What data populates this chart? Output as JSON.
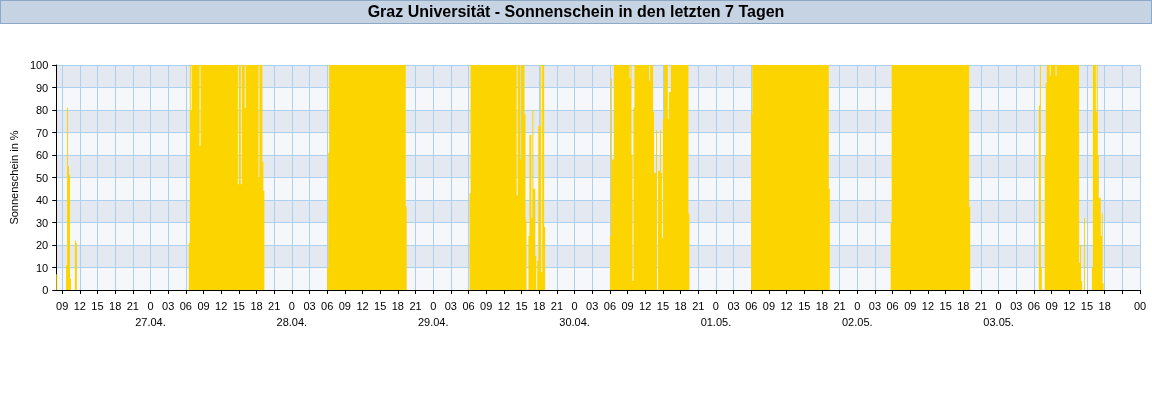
{
  "chart_data": {
    "type": "area",
    "title": "Graz Universität - Sonnenschein in den letzten 7 Tagen",
    "ylabel": "Sonnenschein in %",
    "xlim": [
      "--04-26T08:00",
      "--05-04T00:00"
    ],
    "ylim": [
      0,
      100
    ],
    "yticks": [
      0,
      10,
      20,
      30,
      40,
      50,
      60,
      70,
      80,
      90,
      100
    ],
    "xticks": [
      {
        "value": "--04-26T09:00",
        "label": "09"
      },
      {
        "value": "--04-26T12:00",
        "label": "12"
      },
      {
        "value": "--04-26T15:00",
        "label": "15"
      },
      {
        "value": "--04-26T18:00",
        "label": "18"
      },
      {
        "value": "--04-26T21:00",
        "label": "21"
      },
      {
        "value": "--04-27T00:00",
        "label": "0\n27.04."
      },
      {
        "value": "--04-27T03:00",
        "label": "03"
      },
      {
        "value": "--04-27T06:00",
        "label": "06"
      },
      {
        "value": "--04-27T09:00",
        "label": "09"
      },
      {
        "value": "--04-27T12:00",
        "label": "12"
      },
      {
        "value": "--04-27T15:00",
        "label": "15"
      },
      {
        "value": "--04-27T18:00",
        "label": "18"
      },
      {
        "value": "--04-27T21:00",
        "label": "21"
      },
      {
        "value": "--04-28T00:00",
        "label": "0\n28.04."
      },
      {
        "value": "--04-28T03:00",
        "label": "03"
      },
      {
        "value": "--04-28T06:00",
        "label": "06"
      },
      {
        "value": "--04-28T09:00",
        "label": "09"
      },
      {
        "value": "--04-28T12:00",
        "label": "12"
      },
      {
        "value": "--04-28T15:00",
        "label": "15"
      },
      {
        "value": "--04-28T18:00",
        "label": "18"
      },
      {
        "value": "--04-28T21:00",
        "label": "21"
      },
      {
        "value": "--04-29T00:00",
        "label": "0\n29.04."
      },
      {
        "value": "--04-29T03:00",
        "label": "03"
      },
      {
        "value": "--04-29T06:00",
        "label": "06"
      },
      {
        "value": "--04-29T09:00",
        "label": "09"
      },
      {
        "value": "--04-29T12:00",
        "label": "12"
      },
      {
        "value": "--04-29T15:00",
        "label": "15"
      },
      {
        "value": "--04-29T18:00",
        "label": "18"
      },
      {
        "value": "--04-29T21:00",
        "label": "21"
      },
      {
        "value": "--04-30T00:00",
        "label": "0\n30.04."
      },
      {
        "value": "--04-30T03:00",
        "label": "03"
      },
      {
        "value": "--04-30T06:00",
        "label": "06"
      },
      {
        "value": "--04-30T09:00",
        "label": "09"
      },
      {
        "value": "--04-30T12:00",
        "label": "12"
      },
      {
        "value": "--04-30T15:00",
        "label": "15"
      },
      {
        "value": "--04-30T18:00",
        "label": "18"
      },
      {
        "value": "--04-30T21:00",
        "label": "21"
      },
      {
        "value": "--05-01T00:00",
        "label": "0\n01.05."
      },
      {
        "value": "--05-01T03:00",
        "label": "03"
      },
      {
        "value": "--05-01T06:00",
        "label": "06"
      },
      {
        "value": "--05-01T09:00",
        "label": "09"
      },
      {
        "value": "--05-01T12:00",
        "label": "12"
      },
      {
        "value": "--05-01T15:00",
        "label": "15"
      },
      {
        "value": "--05-01T18:00",
        "label": "18"
      },
      {
        "value": "--05-01T21:00",
        "label": "21"
      },
      {
        "value": "--05-02T00:00",
        "label": "0\n02.05."
      },
      {
        "value": "--05-02T03:00",
        "label": "03"
      },
      {
        "value": "--05-02T06:00",
        "label": "06"
      },
      {
        "value": "--05-02T09:00",
        "label": "09"
      },
      {
        "value": "--05-02T12:00",
        "label": "12"
      },
      {
        "value": "--05-02T15:00",
        "label": "15"
      },
      {
        "value": "--05-02T18:00",
        "label": "18"
      },
      {
        "value": "--05-02T21:00",
        "label": "21"
      },
      {
        "value": "--05-03T00:00",
        "label": "0\n03.05."
      },
      {
        "value": "--05-03T03:00",
        "label": "03"
      },
      {
        "value": "--05-03T06:00",
        "label": "06"
      },
      {
        "value": "--05-03T09:00",
        "label": "09"
      },
      {
        "value": "--05-03T12:00",
        "label": "12"
      },
      {
        "value": "--05-03T15:00",
        "label": "15"
      },
      {
        "value": "--05-03T18:00",
        "label": "18"
      },
      {
        "value": "--05-03T21:00",
        "label": null
      },
      {
        "value": "--05-04T00:00",
        "label": "00"
      }
    ],
    "grid": true,
    "color": "#fcd400",
    "x": [
      "--04-26T08:00",
      "--04-26T08:10",
      "--04-26T08:10",
      "--04-26T09:40",
      "--04-26T09:40",
      "--04-26T09:50",
      "--04-26T09:50",
      "--04-26T10:00",
      "--04-26T10:00",
      "--04-26T10:10",
      "--04-26T10:10",
      "--04-26T10:20",
      "--04-26T10:20",
      "--04-26T10:30",
      "--04-26T10:30",
      "--04-26T11:10",
      "--04-26T11:10",
      "--04-26T11:20",
      "--04-26T11:20",
      "--04-26T11:30",
      "--04-26T11:30",
      "--04-27T06:30",
      "--04-27T06:30",
      "--04-27T06:40",
      "--04-27T06:40",
      "--04-27T06:50",
      "--04-27T06:50",
      "--04-27T07:00",
      "--04-27T07:00",
      "--04-27T08:20",
      "--04-27T08:20",
      "--04-27T08:30",
      "--04-27T08:30",
      "--04-27T14:50",
      "--04-27T14:50",
      "--04-27T15:00",
      "--04-27T15:00",
      "--04-27T15:20",
      "--04-27T15:20",
      "--04-27T15:30",
      "--04-27T15:30",
      "--04-27T16:00",
      "--04-27T16:00",
      "--04-27T16:10",
      "--04-27T16:10",
      "--04-27T18:20",
      "--04-27T18:20",
      "--04-27T18:30",
      "--04-27T18:30",
      "--04-27T19:00",
      "--04-27T19:00",
      "--04-27T19:10",
      "--04-27T19:10",
      "--04-27T19:20",
      "--04-27T19:20",
      "--04-28T06:00",
      "--04-28T06:00",
      "--04-28T06:10",
      "--04-28T06:10",
      "--04-28T06:20",
      "--04-28T06:20",
      "--04-28T19:20",
      "--04-28T19:20",
      "--04-28T19:30",
      "--04-28T19:30",
      "--04-29T06:10",
      "--04-29T06:10",
      "--04-29T06:20",
      "--04-29T06:20",
      "--04-29T14:10",
      "--04-29T14:10",
      "--04-29T14:20",
      "--04-29T14:20",
      "--04-29T14:50",
      "--04-29T14:50",
      "--04-29T15:00",
      "--04-29T15:00",
      "--04-29T15:30",
      "--04-29T15:30",
      "--04-29T15:40",
      "--04-29T15:40",
      "--04-29T15:50",
      "--04-29T15:50",
      "--04-29T16:10",
      "--04-29T16:10",
      "--04-29T16:20",
      "--04-29T16:20",
      "--04-29T16:40",
      "--04-29T16:40",
      "--04-29T16:50",
      "--04-29T16:50",
      "--04-29T17:00",
      "--04-29T17:00",
      "--04-29T17:20",
      "--04-29T17:20",
      "--04-29T17:30",
      "--04-29T17:30",
      "--04-29T17:40",
      "--04-29T17:40",
      "--04-29T17:50",
      "--04-29T17:50",
      "--04-29T18:10",
      "--04-29T18:10",
      "--04-29T18:20",
      "--04-29T18:20",
      "--04-29T18:30",
      "--04-29T18:30",
      "--04-29T18:50",
      "--04-29T18:50",
      "--04-29T19:00",
      "--04-29T19:00",
      "--04-30T06:00",
      "--04-30T06:00",
      "--04-30T06:10",
      "--04-30T06:10",
      "--04-30T06:20",
      "--04-30T06:20",
      "--04-30T06:40",
      "--04-30T06:40",
      "--04-30T09:20",
      "--04-30T09:20",
      "--04-30T09:30",
      "--04-30T09:30",
      "--04-30T09:40",
      "--04-30T09:40",
      "--04-30T09:50",
      "--04-30T09:50",
      "--04-30T10:00",
      "--04-30T10:00",
      "--04-30T10:10",
      "--04-30T10:10",
      "--04-30T12:40",
      "--04-30T12:40",
      "--04-30T12:50",
      "--04-30T12:50",
      "--04-30T13:20",
      "--04-30T13:20",
      "--04-30T13:30",
      "--04-30T13:30",
      "--04-30T13:50",
      "--04-30T13:50",
      "--04-30T14:00",
      "--04-30T14:00",
      "--04-30T14:10",
      "--04-30T14:10",
      "--04-30T14:30",
      "--04-30T14:30",
      "--04-30T14:40",
      "--04-30T14:40",
      "--04-30T14:50",
      "--04-30T14:50",
      "--04-30T15:00",
      "--04-30T15:00",
      "--04-30T15:10",
      "--04-30T15:10",
      "--04-30T15:50",
      "--04-30T15:50",
      "--04-30T16:00",
      "--04-30T16:00",
      "--04-30T16:20",
      "--04-30T16:20",
      "--04-30T19:20",
      "--04-30T19:20",
      "--04-30T19:30",
      "--04-30T19:30",
      "--05-01T06:00",
      "--05-01T06:00",
      "--05-01T06:10",
      "--05-01T06:10",
      "--05-01T19:10",
      "--05-01T19:10",
      "--05-01T19:20",
      "--05-01T19:20",
      "--05-02T05:40",
      "--05-02T05:40",
      "--05-02T05:50",
      "--05-02T05:50",
      "--05-02T19:00",
      "--05-02T19:00",
      "--05-02T19:10",
      "--05-02T19:10",
      "--05-03T06:50",
      "--05-03T06:50",
      "--05-03T07:00",
      "--05-03T07:00",
      "--05-03T07:10",
      "--05-03T07:10",
      "--05-03T07:20",
      "--05-03T07:20",
      "--05-03T07:50",
      "--05-03T07:50",
      "--05-03T08:00",
      "--05-03T08:00",
      "--05-03T08:10",
      "--05-03T08:10",
      "--05-03T08:40",
      "--05-03T08:40",
      "--05-03T08:50",
      "--05-03T08:50",
      "--05-03T09:40",
      "--05-03T09:40",
      "--05-03T09:50",
      "--05-03T09:50",
      "--05-03T13:40",
      "--05-03T13:40",
      "--05-03T13:50",
      "--05-03T13:50",
      "--05-03T14:00",
      "--05-03T14:00",
      "--05-03T14:10",
      "--05-03T14:10",
      "--05-03T14:30",
      "--05-03T14:30",
      "--05-03T14:40",
      "--05-03T14:40",
      "--05-03T15:50",
      "--05-03T15:50",
      "--05-03T16:00",
      "--05-03T16:00",
      "--05-03T16:30",
      "--05-03T16:30",
      "--05-03T16:40",
      "--05-03T16:40",
      "--05-03T16:50",
      "--05-03T16:50",
      "--05-03T17:00",
      "--05-03T17:00",
      "--05-03T17:20",
      "--05-03T17:20",
      "--05-03T17:30",
      "--05-03T17:30",
      "--05-03T17:40",
      "--05-03T17:40",
      "--05-03T17:50",
      "--05-03T17:50"
    ],
    "values": [
      7,
      7,
      0,
      0,
      11,
      11,
      81,
      81,
      55,
      55,
      51,
      51,
      5,
      5,
      0,
      0,
      22,
      22,
      21,
      21,
      0,
      0,
      21,
      21,
      100,
      100,
      80,
      80,
      100,
      100,
      64,
      64,
      100,
      100,
      47,
      47,
      100,
      100,
      47,
      47,
      100,
      100,
      81,
      81,
      100,
      100,
      50,
      50,
      100,
      100,
      57,
      57,
      44,
      44,
      0,
      0,
      10,
      10,
      61,
      61,
      100,
      100,
      37,
      37,
      0,
      0,
      43,
      43,
      100,
      100,
      42,
      42,
      100,
      100,
      58,
      58,
      100,
      100,
      78,
      78,
      31,
      31,
      0,
      0,
      24,
      24,
      69,
      69,
      32,
      32,
      80,
      80,
      45,
      45,
      15,
      15,
      0,
      0,
      13,
      13,
      73,
      73,
      100,
      100,
      8,
      8,
      100,
      100,
      28,
      28,
      0,
      0,
      24,
      24,
      94,
      94,
      58,
      58,
      100,
      100,
      94,
      94,
      100,
      100,
      60,
      60,
      4,
      4,
      81,
      81,
      100,
      100,
      93,
      93,
      100,
      100,
      79,
      79,
      52,
      52,
      71,
      71,
      0,
      0,
      53,
      53,
      71,
      71,
      52,
      52,
      23,
      23,
      76,
      76,
      100,
      100,
      76,
      76,
      88,
      88,
      100,
      100,
      34,
      34,
      0,
      0,
      78,
      78,
      100,
      100,
      45,
      45,
      0,
      0,
      30,
      30,
      100,
      100,
      37,
      37,
      0,
      0,
      82,
      82,
      100,
      100,
      10,
      10,
      0,
      0,
      60,
      60,
      92,
      92,
      100,
      100,
      95,
      95,
      100,
      100,
      95,
      95,
      100,
      100,
      12,
      12,
      20,
      20,
      4,
      4,
      0,
      0,
      32,
      32,
      0,
      0,
      10,
      10,
      100,
      100,
      79,
      79,
      100,
      100,
      60,
      60,
      41,
      41,
      24,
      24,
      34,
      34,
      3,
      3,
      0
    ]
  }
}
